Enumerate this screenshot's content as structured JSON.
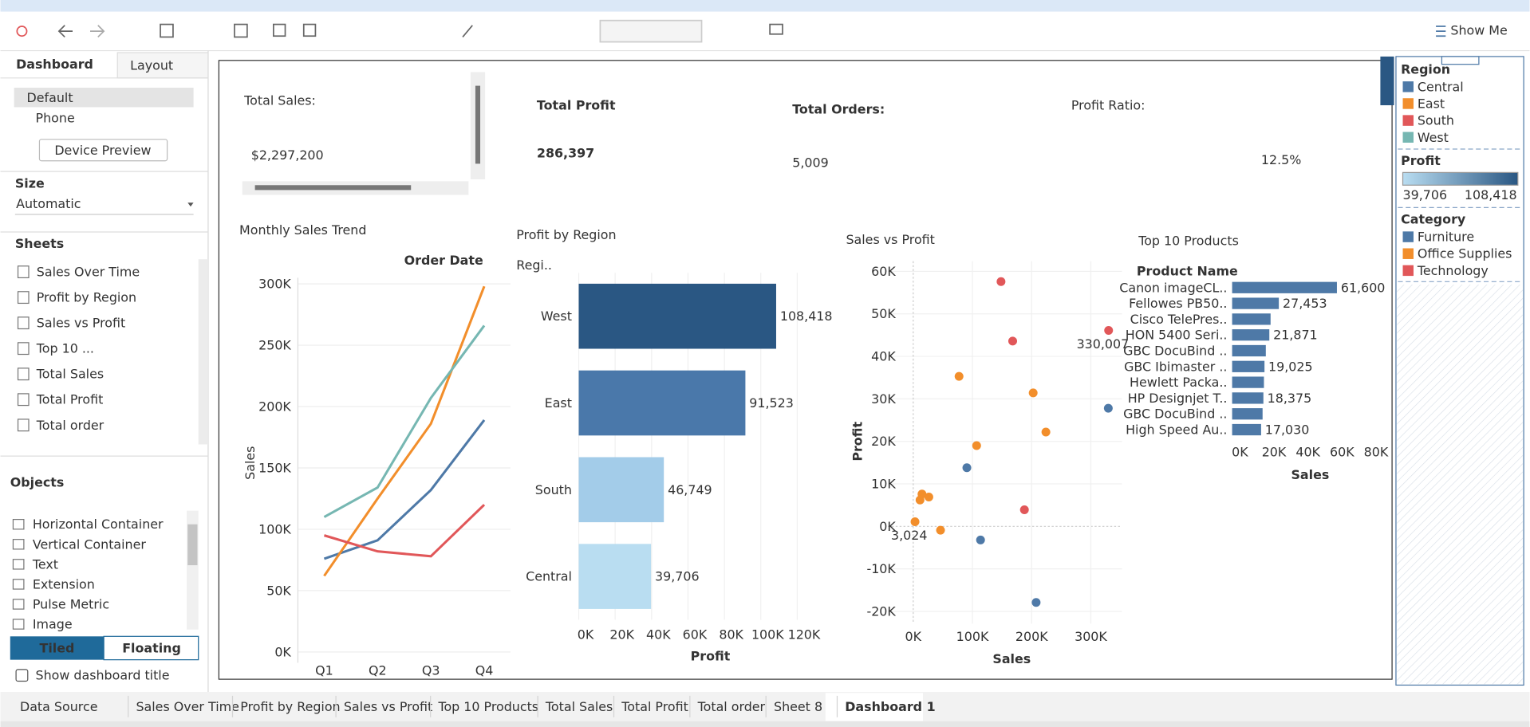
{
  "toolbar": {
    "show_me": "Show Me"
  },
  "side_panel": {
    "tabs": [
      "Dashboard",
      "Layout"
    ],
    "devices": [
      "Default",
      "Phone"
    ],
    "device_preview": "Device Preview",
    "size_heading": "Size",
    "size_value": "Automatic",
    "sheets_heading": "Sheets",
    "sheets": [
      "Sales Over Time",
      "Profit by Region",
      "Sales vs Profit",
      "Top 10 ...",
      "Total Sales",
      "Total Profit",
      "Total order"
    ],
    "objects_heading": "Objects",
    "objects": [
      "Horizontal Container",
      "Vertical Container",
      "Text",
      "Extension",
      "Pulse Metric",
      "Image"
    ],
    "layout_modes": [
      "Tiled",
      "Floating"
    ],
    "show_title": "Show dashboard title"
  },
  "kpis": [
    {
      "label": "Total Sales:",
      "value": "$2,297,200"
    },
    {
      "label": "Total Profit",
      "value": "286,397"
    },
    {
      "label": "Total Orders:",
      "value": "5,009"
    },
    {
      "label": "Profit Ratio:",
      "value": "12.5%"
    }
  ],
  "chart_data": [
    {
      "type": "line",
      "title": "Monthly Sales Trend",
      "x_header": "Order Date",
      "y_label": "Sales",
      "categories": [
        "Q1",
        "Q2",
        "Q3",
        "Q4"
      ],
      "series": [
        {
          "name": "Central",
          "color": "#4e79a7",
          "values": [
            76000,
            91000,
            132000,
            189000
          ]
        },
        {
          "name": "East",
          "color": "#f28e2b",
          "values": [
            62000,
            125000,
            186000,
            298000
          ]
        },
        {
          "name": "South",
          "color": "#e15759",
          "values": [
            95000,
            82000,
            78000,
            120000
          ]
        },
        {
          "name": "West",
          "color": "#76b7b2",
          "values": [
            110000,
            134000,
            207000,
            266000
          ]
        }
      ],
      "ylim": [
        0,
        305000
      ],
      "yticks": [
        {
          "value": 0,
          "label": "0K"
        },
        {
          "value": 50000,
          "label": "50K"
        },
        {
          "value": 100000,
          "label": "100K"
        },
        {
          "value": 150000,
          "label": "150K"
        },
        {
          "value": 200000,
          "label": "200K"
        },
        {
          "value": 250000,
          "label": "250K"
        },
        {
          "value": 300000,
          "label": "300K"
        }
      ],
      "grid": true
    },
    {
      "type": "bar",
      "orientation": "horizontal",
      "title": "Profit by Region",
      "y_header": "Regi..",
      "x_label": "Profit",
      "categories": [
        "West",
        "East",
        "South",
        "Central"
      ],
      "values": [
        108418,
        91523,
        46749,
        39706
      ],
      "value_labels": [
        "108,418",
        "91,523",
        "46,749",
        "39,706"
      ],
      "colors": [
        "#2a5783",
        "#4a78aa",
        "#a3cce9",
        "#b9ddf1"
      ],
      "xlim": [
        0,
        143000
      ],
      "xticks": [
        {
          "value": 0,
          "label": "0K"
        },
        {
          "value": 20000,
          "label": "20K"
        },
        {
          "value": 40000,
          "label": "40K"
        },
        {
          "value": 60000,
          "label": "60K"
        },
        {
          "value": 80000,
          "label": "80K"
        },
        {
          "value": 100000,
          "label": "100K"
        },
        {
          "value": 120000,
          "label": "120K"
        }
      ],
      "grid": true
    },
    {
      "type": "scatter",
      "title": "Sales vs Profit",
      "x_label": "Sales",
      "y_label": "Profit",
      "series": [
        {
          "name": "Furniture",
          "color": "#4e79a7",
          "x": [
            90600,
            329500,
            113700,
            207600
          ],
          "y": [
            13800,
            27800,
            -3200,
            -17900
          ],
          "labels": [
            null,
            null,
            null,
            null
          ]
        },
        {
          "name": "Office Supplies",
          "color": "#f28e2b",
          "x": [
            77400,
            202600,
            224100,
            107100,
            14800,
            26400,
            11500,
            3024,
            46100
          ],
          "y": [
            35300,
            31400,
            22200,
            19000,
            7600,
            6900,
            6200,
            1100,
            -900
          ],
          "labels": [
            null,
            null,
            null,
            null,
            null,
            null,
            null,
            "3,024",
            null
          ]
        },
        {
          "name": "Technology",
          "color": "#e15759",
          "x": [
            148300,
            168000,
            330007,
            187800
          ],
          "y": [
            57600,
            43600,
            46100,
            3900
          ],
          "labels": [
            null,
            null,
            "330,007",
            null
          ]
        }
      ],
      "xlim": [
        -42800,
        352500
      ],
      "ylim": [
        -22900,
        62400
      ],
      "xticks": [
        {
          "value": 0,
          "label": "0K"
        },
        {
          "value": 100000,
          "label": "100K"
        },
        {
          "value": 200000,
          "label": "200K"
        },
        {
          "value": 300000,
          "label": "300K"
        }
      ],
      "yticks": [
        {
          "value": -20000,
          "label": "-20K"
        },
        {
          "value": -10000,
          "label": "-10K"
        },
        {
          "value": 0,
          "label": "0K"
        },
        {
          "value": 10000,
          "label": "10K"
        },
        {
          "value": 20000,
          "label": "20K"
        },
        {
          "value": 30000,
          "label": "30K"
        },
        {
          "value": 40000,
          "label": "40K"
        },
        {
          "value": 50000,
          "label": "50K"
        },
        {
          "value": 60000,
          "label": "60K"
        }
      ],
      "grid": true
    },
    {
      "type": "bar",
      "orientation": "horizontal",
      "title": "Top 10 Products",
      "y_header": "Product Name",
      "x_label": "Sales",
      "categories": [
        "Canon imageCL..",
        "Fellowes PB50..",
        "Cisco TelePres..",
        "HON 5400 Seri..",
        "GBC DocuBind ..",
        "GBC Ibimaster ..",
        "Hewlett Packa..",
        "HP Designjet T..",
        "GBC DocuBind ..",
        "High Speed Au.."
      ],
      "values": [
        61600,
        27453,
        22600,
        21871,
        19800,
        19025,
        18700,
        18375,
        17900,
        17030
      ],
      "value_labels": [
        "61,600",
        "27,453",
        null,
        "21,871",
        null,
        "19,025",
        null,
        "18,375",
        null,
        "17,030"
      ],
      "color": "#4e79a7",
      "xlim": [
        0,
        90000
      ],
      "xticks": [
        {
          "value": 0,
          "label": "0K"
        },
        {
          "value": 20000,
          "label": "20K"
        },
        {
          "value": 40000,
          "label": "40K"
        },
        {
          "value": 60000,
          "label": "60K"
        },
        {
          "value": 80000,
          "label": "80K"
        }
      ],
      "grid": false
    }
  ],
  "legends": {
    "region": {
      "title": "Region",
      "items": [
        "Central",
        "East",
        "South",
        "West"
      ],
      "colors": [
        "#4e79a7",
        "#f28e2b",
        "#e15759",
        "#76b7b2"
      ]
    },
    "profit": {
      "title": "Profit",
      "min": "39,706",
      "max": "108,418",
      "colors": [
        "#b9ddf1",
        "#2a5783"
      ]
    },
    "category": {
      "title": "Category",
      "items": [
        "Furniture",
        "Office Supplies",
        "Technology"
      ],
      "colors": [
        "#4e79a7",
        "#f28e2b",
        "#e15759"
      ]
    }
  },
  "sheet_tabs": [
    "Data Source",
    "Sales Over Time",
    "Profit by Region",
    "Sales vs Profit",
    "Top 10 Products",
    "Total Sales",
    "Total Profit",
    "Total order",
    "Sheet 8",
    "Dashboard 1"
  ]
}
